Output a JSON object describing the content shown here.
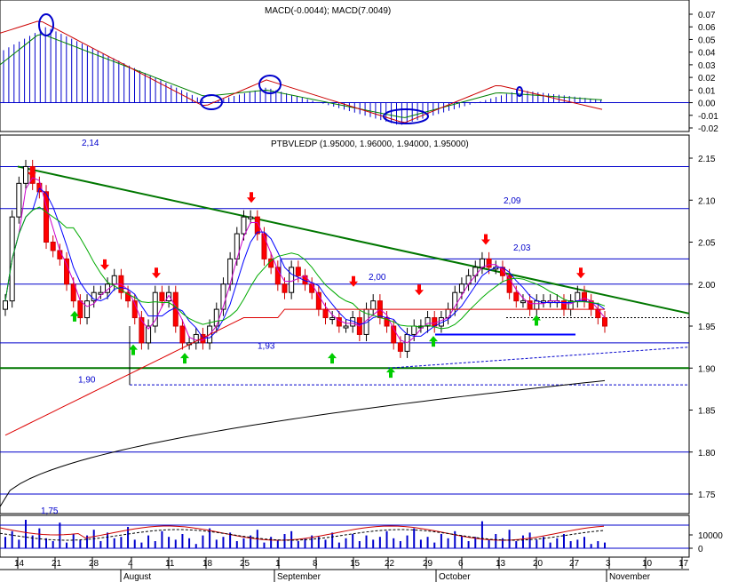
{
  "chart_data": [
    {
      "type": "bar",
      "panel": "macd",
      "title": "MACD(-0.0044); MACD(7.0049)",
      "ylim": [
        -0.025,
        0.075
      ],
      "y_ticks": [
        "0.07",
        "0.06",
        "0.05",
        "0.04",
        "0.03",
        "0.02",
        "0.01",
        "0.00",
        "-0.01",
        "-0.02"
      ],
      "grid": false,
      "histogram_color": "#0000cc",
      "macd_line_color": "#cc0000",
      "signal_line_color": "#008000",
      "highlight_circles": "blue ellipses at MACD turning points"
    },
    {
      "type": "line",
      "panel": "price",
      "title": "PTBVLEDP (1.95000, 1.96000, 1.94000, 1.95000)",
      "ylim": [
        1.72,
        2.175
      ],
      "y_ticks": [
        "2.15",
        "2.10",
        "2.05",
        "2.00",
        "1.95",
        "1.90",
        "1.85",
        "1.80",
        "1.75"
      ],
      "levels": [
        {
          "value": 2.14,
          "label": "2,14"
        },
        {
          "value": 2.09,
          "label": "2,09"
        },
        {
          "value": 2.03,
          "label": "2,03"
        },
        {
          "value": 2.0,
          "label": "2,00"
        },
        {
          "value": 1.93,
          "label": "1,93"
        },
        {
          "value": 1.9,
          "label": "1,90"
        },
        {
          "value": 1.75,
          "label": "1,75"
        }
      ],
      "horizontal_lines": [
        2.14,
        2.09,
        2.0,
        1.93,
        1.8,
        1.75
      ],
      "support_line": 1.9,
      "downtrend_line": {
        "from": 2.14,
        "to": 1.965
      },
      "last_close": 1.95,
      "candle_colors": {
        "up": "#ffffff",
        "down": "#ff0000"
      },
      "signal_arrows": {
        "sell": "#ff0000",
        "buy": "#00cc00"
      }
    },
    {
      "type": "bar",
      "panel": "volume",
      "y_ticks": [
        "10000",
        "0"
      ],
      "bar_color": "#0000cc"
    }
  ],
  "x_axis": {
    "day_ticks": [
      "14",
      "21",
      "28",
      "4",
      "11",
      "18",
      "25",
      "1",
      "8",
      "15",
      "22",
      "29",
      "6",
      "13",
      "20",
      "27",
      "3",
      "10",
      "17"
    ],
    "months": [
      "August",
      "September",
      "October",
      "November"
    ]
  }
}
